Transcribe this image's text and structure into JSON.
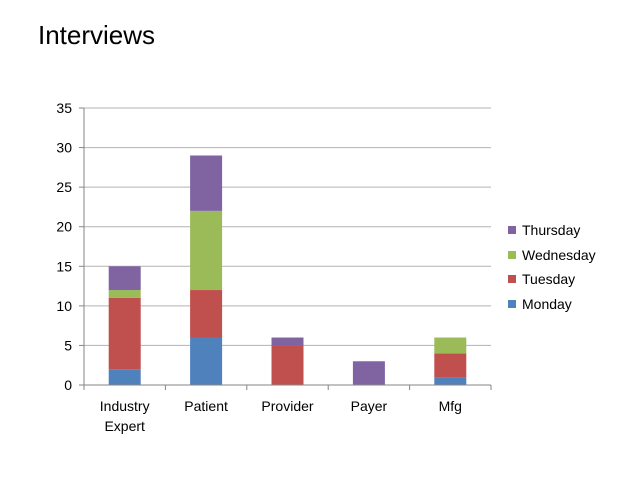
{
  "slide": {
    "title": "Interviews"
  },
  "colors": {
    "Monday": "#4f81bd",
    "Tuesday": "#c0504d",
    "Wednesday": "#9bbb59",
    "Thursday": "#8064a2",
    "gridline": "#b3b3b3",
    "axis": "#868686"
  },
  "chart_data": {
    "type": "bar",
    "stacked": true,
    "title": "",
    "xlabel": "",
    "ylabel": "",
    "categories": [
      "Industry Expert",
      "Patient",
      "Provider",
      "Payer",
      "Mfg"
    ],
    "series": [
      {
        "name": "Monday",
        "values": [
          2,
          6,
          0,
          0,
          1
        ]
      },
      {
        "name": "Tuesday",
        "values": [
          9,
          6,
          5,
          0,
          3
        ]
      },
      {
        "name": "Wednesday",
        "values": [
          1,
          10,
          0,
          0,
          2
        ]
      },
      {
        "name": "Thursday",
        "values": [
          3,
          7,
          1,
          3,
          0
        ]
      }
    ],
    "ylim": [
      0,
      35
    ],
    "yticks": [
      0,
      5,
      10,
      15,
      20,
      25,
      30,
      35
    ],
    "grid": true,
    "legend": "right"
  }
}
